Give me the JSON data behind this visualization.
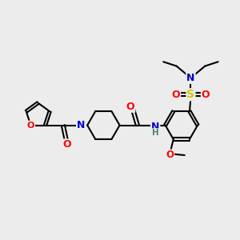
{
  "bg_color": "#ececec",
  "atom_colors": {
    "C": "#000000",
    "N": "#0000cc",
    "O": "#ff0000",
    "S": "#cccc00",
    "H": "#4a8a6a"
  },
  "bond_color": "#000000",
  "bond_width": 1.5,
  "dbo": 0.055,
  "figsize": [
    3.0,
    3.0
  ],
  "dpi": 100
}
